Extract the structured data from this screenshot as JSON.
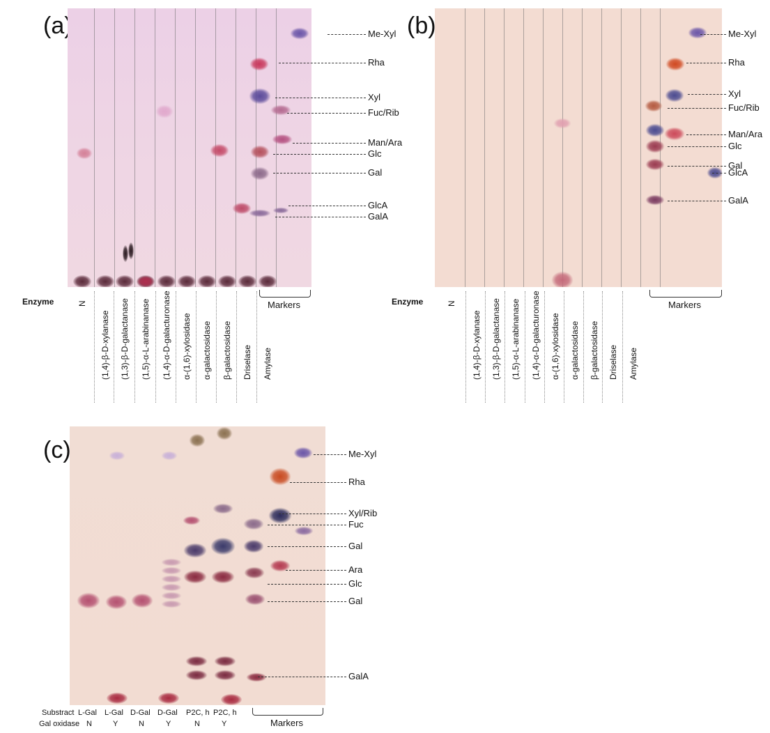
{
  "panels": [
    {
      "id": "a",
      "label": "(a)",
      "enzyme_header": "Enzyme",
      "lanes": [
        "N",
        "(1,4)-β-D-xylanase",
        "(1,3)-β-D-galactanase",
        "(1,5)-α-L-arabinanase",
        "(1,4)-α-D-galacturonase",
        "α-(1,6)-xylosidase",
        "α-galactosidase",
        "β-galactosidase",
        "Driselase",
        "Amylase"
      ],
      "markers_label": "Markers",
      "callouts": [
        "Me-Xyl",
        "Rha",
        "Xyl",
        "Fuc/Rib",
        "Man/Ara",
        "Glc",
        "Gal",
        "GlcA",
        "GalA"
      ]
    },
    {
      "id": "b",
      "label": "(b)",
      "enzyme_header": "Enzyme",
      "lanes": [
        "N",
        "(1,4)-β-D-xylanase",
        "(1,3)-β-D-galactanase",
        "(1,5)-α-L-arabinanase",
        "(1,4)-α-D-galacturonase",
        "α-(1,6)-xylosidase",
        "α-galactosidase",
        "β-galactosidase",
        "Driselase",
        "Amylase"
      ],
      "markers_label": "Markers",
      "callouts": [
        "Me-Xyl",
        "Rha",
        "Xyl",
        "Fuc/Rib",
        "Man/Ara",
        "Glc",
        "Gal",
        "GlcA",
        "GalA"
      ]
    },
    {
      "id": "c",
      "label": "(c)",
      "substract_header": "Substract",
      "oxidase_header": "Gal oxidase",
      "substract_values": [
        "L-Gal",
        "L-Gal",
        "D-Gal",
        "D-Gal",
        "P2C, h",
        "P2C, h"
      ],
      "oxidase_values": [
        "N",
        "Y",
        "N",
        "Y",
        "N",
        "Y"
      ],
      "markers_label": "Markers",
      "callouts": [
        "Me-Xyl",
        "Rha",
        "Xyl/Rib",
        "Fuc",
        "Gal",
        "Ara",
        "Glc",
        "Gal",
        "GalA"
      ]
    }
  ],
  "colors": {
    "plate_a": "#efd3e4",
    "plate_b": "#f3ddd3",
    "plate_c": "#f1dcd2",
    "spot_red": "#c0405a",
    "spot_blue": "#5a4a9a",
    "spot_dark": "#5a2a3a"
  }
}
